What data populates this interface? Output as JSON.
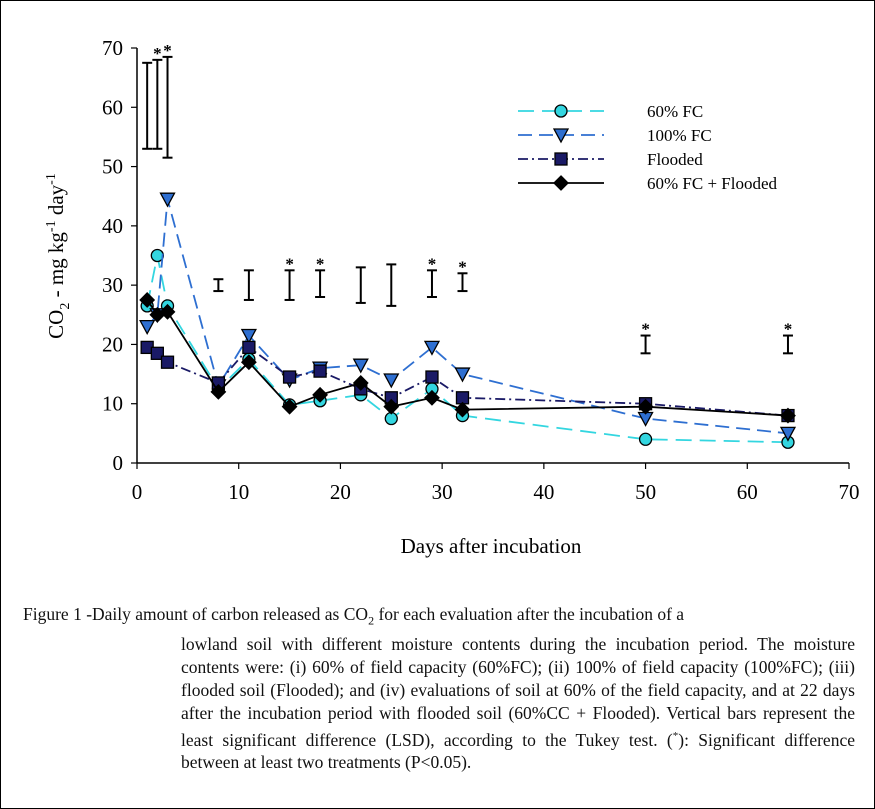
{
  "chart_data": {
    "type": "line",
    "xlabel": "Days after incubation",
    "ylabel_main": "CO",
    "ylabel_sub": "2",
    "ylabel_rest1": " - mg kg",
    "ylabel_sup1": "-1",
    "ylabel_rest2": " day",
    "ylabel_sup2": "-1",
    "xlim": [
      0,
      70
    ],
    "ylim": [
      0,
      70
    ],
    "xticks": [
      0,
      10,
      20,
      30,
      40,
      50,
      60,
      70
    ],
    "yticks": [
      0,
      10,
      20,
      30,
      40,
      50,
      60,
      70
    ],
    "legend_position": "top-right",
    "series": [
      {
        "name": "60% FC",
        "color": "#33d6e0",
        "marker": "circle",
        "dash": "long",
        "x": [
          1,
          2,
          3,
          8,
          11,
          15,
          18,
          22,
          25,
          29,
          32,
          50,
          64
        ],
        "y": [
          26.5,
          35,
          26.5,
          12.5,
          17.5,
          9.8,
          10.5,
          11.5,
          7.5,
          12.5,
          8,
          4,
          3.5
        ]
      },
      {
        "name": "100% FC",
        "color": "#2e6fd1",
        "marker": "triangle-down",
        "dash": "medium",
        "x": [
          1,
          2,
          3,
          8,
          11,
          15,
          18,
          22,
          25,
          29,
          32,
          50,
          64
        ],
        "y": [
          23,
          25,
          44.5,
          13,
          21.5,
          14,
          16,
          16.5,
          14,
          19.5,
          15,
          7.5,
          5
        ]
      },
      {
        "name": "Flooded",
        "color": "#1a1a66",
        "marker": "square",
        "dash": "dashdot",
        "x": [
          1,
          2,
          3,
          8,
          11,
          15,
          18,
          22,
          25,
          29,
          32,
          50,
          64
        ],
        "y": [
          19.5,
          18.5,
          17,
          13.5,
          19.5,
          14.5,
          15.5,
          12.5,
          11,
          14.5,
          11,
          10,
          8
        ]
      },
      {
        "name": "60% FC + Flooded",
        "color": "#000000",
        "marker": "diamond",
        "dash": "solid",
        "x": [
          1,
          2,
          3,
          8,
          11,
          15,
          18,
          22,
          25,
          29,
          32,
          50,
          64
        ],
        "y": [
          27.5,
          25,
          25.5,
          12,
          17,
          9.5,
          11.5,
          13.5,
          9.5,
          11,
          9,
          9.5,
          8
        ]
      }
    ],
    "lsd_bars": [
      {
        "x": 1,
        "low": 53,
        "high": 67.5,
        "star": false
      },
      {
        "x": 2,
        "low": 53,
        "high": 68,
        "star": true
      },
      {
        "x": 3,
        "low": 51.5,
        "high": 68.5,
        "star": true
      },
      {
        "x": 8,
        "low": 29,
        "high": 31,
        "star": false
      },
      {
        "x": 11,
        "low": 27.5,
        "high": 32.5,
        "star": false
      },
      {
        "x": 15,
        "low": 27.5,
        "high": 32.5,
        "star": true
      },
      {
        "x": 18,
        "low": 28,
        "high": 32.5,
        "star": true
      },
      {
        "x": 22,
        "low": 27,
        "high": 33,
        "star": false
      },
      {
        "x": 25,
        "low": 26.5,
        "high": 33.5,
        "star": false
      },
      {
        "x": 29,
        "low": 28,
        "high": 32.5,
        "star": true
      },
      {
        "x": 32,
        "low": 29,
        "high": 32,
        "star": true
      },
      {
        "x": 50,
        "low": 18.5,
        "high": 21.5,
        "star": true
      },
      {
        "x": 64,
        "low": 18.5,
        "high": 21.5,
        "star": true
      }
    ],
    "star_symbol": "*"
  },
  "caption": {
    "lead": "Figure 1 - ",
    "line1_a": "Daily amount of carbon released as CO",
    "line1_sub": "2",
    "line1_b": " for each evaluation after the incubation of a",
    "rest_a": "lowland soil with different moisture contents during the incubation period. The moisture contents were: (i) 60% of field capacity (60%FC); (ii) 100% of field capacity (100%FC); (iii) flooded soil (Flooded); and (iv) evaluations of soil at 60% of the field capacity, and at 22 days after the incubation period with flooded soil (60%CC + Flooded). Vertical bars represent the least significant difference (LSD), according to the Tukey test. (",
    "rest_sup": "*",
    "rest_b": "): Significant difference between at least two treatments (P<0.05)."
  }
}
